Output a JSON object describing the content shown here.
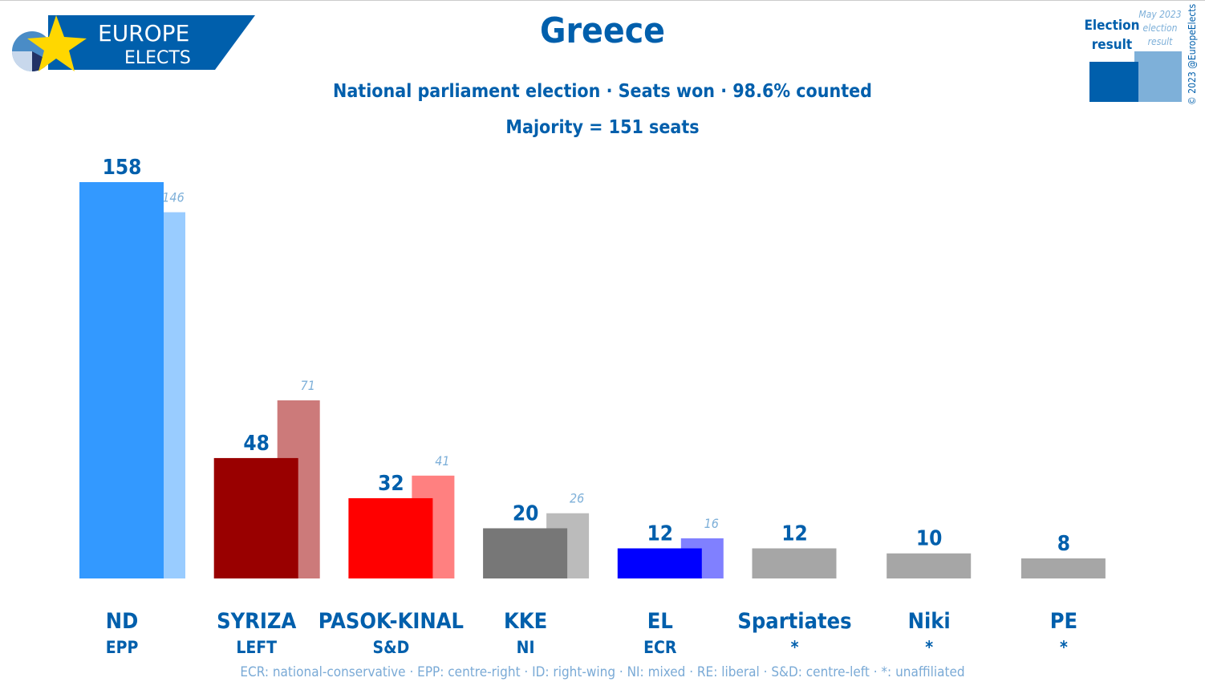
{
  "logo": {
    "line1": "EUROPE",
    "line2": "ELECTS"
  },
  "title": "Greece",
  "subtitle": "National parliament election · Seats won · 98.6% counted",
  "majority": "Majority = 151 seats",
  "legend": {
    "current": "Election result",
    "previous": "May 2023 election result",
    "current_color": "#005fac",
    "previous_color": "#7eb0d9"
  },
  "copyright": "© 2023 @EuropeElects",
  "footnote": "ECR: national-conservative · EPP: centre-right · ID: right-wing · NI: mixed · RE: liberal · S&D: centre-left · *: unaffiliated",
  "chart_data": {
    "type": "bar",
    "categories": [
      "ND",
      "SYRIZA",
      "PASOK-KINAL",
      "KKE",
      "EL",
      "Spartiates",
      "Niki",
      "PE"
    ],
    "groups": [
      "EPP",
      "LEFT",
      "S&D",
      "NI",
      "ECR",
      "*",
      "*",
      "*"
    ],
    "series": [
      {
        "name": "Election result",
        "values": [
          158,
          48,
          32,
          20,
          12,
          12,
          10,
          8
        ]
      },
      {
        "name": "May 2023 election result",
        "values": [
          146,
          71,
          41,
          26,
          16,
          null,
          null,
          null
        ]
      }
    ],
    "colors": [
      "#3399ff",
      "#990000",
      "#ff0000",
      "#777777",
      "#0000ff",
      "#a6a6a6",
      "#a6a6a6",
      "#a6a6a6"
    ],
    "previous_colors": [
      "#99ccff",
      "#cc7a7a",
      "#ff8080",
      "#bbbbbb",
      "#8080ff",
      null,
      null,
      null
    ],
    "ylim": [
      0,
      158
    ]
  }
}
